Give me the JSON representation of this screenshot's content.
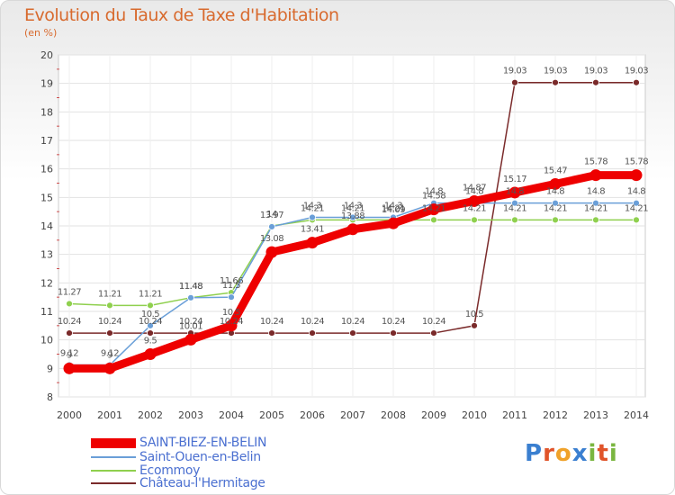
{
  "chart_data": {
    "type": "line",
    "title": "Evolution du Taux de Taxe d'Habitation",
    "subtitle": "(en %)",
    "x": [
      "2000",
      "2001",
      "2002",
      "2003",
      "2004",
      "2005",
      "2006",
      "2007",
      "2008",
      "2009",
      "2010",
      "2011",
      "2012",
      "2013",
      "2014"
    ],
    "ylim": [
      8,
      20
    ],
    "yticks": [
      "8",
      "9",
      "10",
      "11",
      "12",
      "13",
      "14",
      "15",
      "16",
      "17",
      "18",
      "19",
      "20"
    ],
    "grid": true,
    "legend_position": "bottom-left",
    "series": [
      {
        "name": "SAINT-BIEZ-EN-BELIN",
        "color": "#ee0000",
        "values": [
          9.0,
          9.0,
          9.5,
          10.01,
          10.5,
          13.08,
          13.41,
          13.88,
          14.09,
          14.58,
          14.87,
          15.17,
          15.47,
          15.78,
          15.78
        ],
        "labels": [
          "9",
          "9",
          "9.5",
          "10.01",
          "10.5",
          "13.08",
          "13.41",
          "13.88",
          "14.09",
          "14.58",
          "14.87",
          "15.17",
          "15.47",
          "15.78",
          "15.78"
        ]
      },
      {
        "name": "Saint-Ouen-en-Belin",
        "color": "#6a9fd8",
        "values": [
          9.12,
          9.12,
          10.5,
          11.48,
          11.5,
          13.97,
          14.3,
          14.3,
          14.3,
          14.8,
          14.8,
          14.8,
          14.8,
          14.8,
          14.8
        ],
        "labels": [
          "9.12",
          "9.12",
          "10.5",
          "11.48",
          "11.5",
          "13.97",
          "14.3",
          "14.3",
          "14.3",
          "14.8",
          "14.8",
          "14.8",
          "14.8",
          "14.8",
          "14.8"
        ]
      },
      {
        "name": "Ecommoy",
        "color": "#8fd04e",
        "values": [
          11.27,
          11.21,
          11.21,
          11.48,
          11.66,
          14.0,
          14.21,
          14.21,
          14.21,
          14.21,
          14.21,
          14.21,
          14.21,
          14.21,
          14.21
        ],
        "labels": [
          "11.27",
          "11.21",
          "11.21",
          "11.48",
          "11.66",
          "14",
          "14.21",
          "14.21",
          "14.21",
          "14.21",
          "14.21",
          "14.21",
          "14.21",
          "14.21",
          "14.21"
        ]
      },
      {
        "name": "Château-l'Hermitage",
        "color": "#7a2a2a",
        "values": [
          10.24,
          10.24,
          10.24,
          10.24,
          10.24,
          10.24,
          10.24,
          10.24,
          10.24,
          10.24,
          10.5,
          19.03,
          19.03,
          19.03,
          19.03
        ],
        "labels": [
          "10.24",
          "10.24",
          "10.24",
          "10.24",
          "10.24",
          "10.24",
          "10.24",
          "10.24",
          "10.24",
          "10.24",
          "10.5",
          "19.03",
          "19.03",
          "19.03",
          "19.03"
        ]
      }
    ]
  },
  "logo": {
    "text": "Proxiti",
    "letters": [
      "P",
      "r",
      "o",
      "x",
      "i",
      "t",
      "i"
    ],
    "colors": [
      "#3a7fd0",
      "#e0542a",
      "#f0a22a",
      "#3a7fd0",
      "#7ab640",
      "#e0542a",
      "#7ab640"
    ]
  }
}
